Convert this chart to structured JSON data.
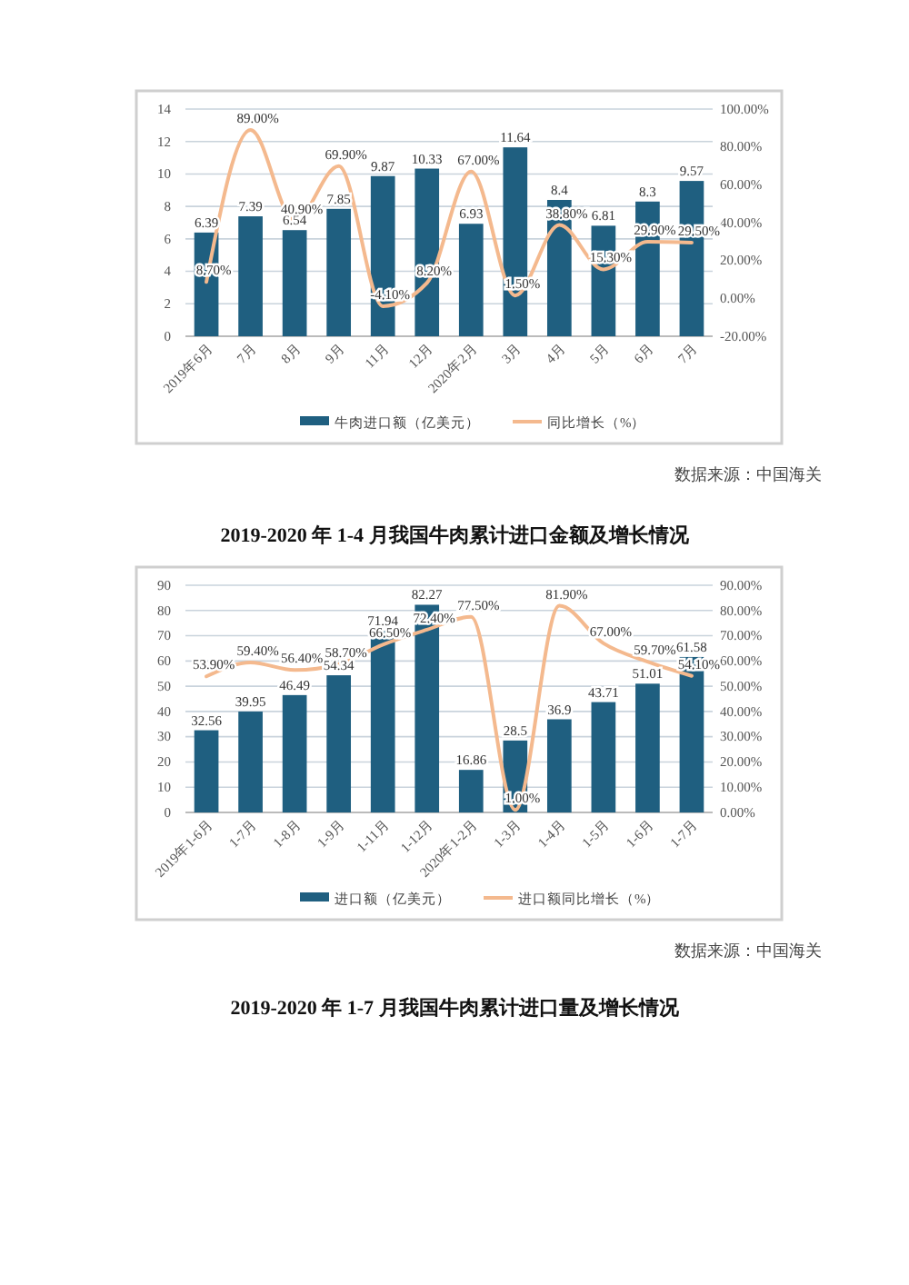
{
  "chart_data": [
    {
      "type": "bar",
      "categories": [
        "2019年6月",
        "7月",
        "8月",
        "9月",
        "11月",
        "12月",
        "2020年2月",
        "3月",
        "4月",
        "5月",
        "6月",
        "7月"
      ],
      "series": [
        {
          "name": "牛肉进口额（亿美元）",
          "color": "#1f5f80",
          "values": [
            6.39,
            7.39,
            6.54,
            7.85,
            9.87,
            10.33,
            6.93,
            11.64,
            8.4,
            6.81,
            8.3,
            9.57
          ],
          "value_labels": [
            "6.39",
            "7.39",
            "6.54",
            "7.85",
            "9.87",
            "10.33",
            "6.93",
            "11.64",
            "8.4",
            "6.81",
            "8.3",
            "9.57"
          ]
        },
        {
          "name": "同比增长（%）",
          "type": "line",
          "axis": "y2",
          "color": "#f4b98e",
          "values": [
            8.7,
            89.0,
            40.9,
            69.9,
            -4.1,
            8.2,
            67.0,
            1.5,
            38.8,
            15.3,
            29.9,
            29.5
          ],
          "value_labels": [
            "8.70%",
            "89.00%",
            "40.90%",
            "69.90%",
            "-4.10%",
            "8.20%",
            "67.00%",
            "1.50%",
            "38.80%",
            "15.30%",
            "29.90%",
            "29.50%"
          ]
        }
      ],
      "ylim": [
        0,
        14
      ],
      "yticks": [
        0,
        2,
        4,
        6,
        8,
        10,
        12,
        14
      ],
      "y2lim": [
        -20,
        100
      ],
      "y2ticks": [
        {
          "value": -20,
          "label": "-20.00%"
        },
        {
          "value": 0,
          "label": "0.00%"
        },
        {
          "value": 20,
          "label": "20.00%"
        },
        {
          "value": 40,
          "label": "40.00%"
        },
        {
          "value": 60,
          "label": "60.00%"
        },
        {
          "value": 80,
          "label": "80.00%"
        },
        {
          "value": 100,
          "label": "100.00%"
        }
      ],
      "grid": "y",
      "legend": "bottom",
      "marker": "none",
      "line_style": "solid",
      "annotations": [
        "数据来源：中国海关"
      ]
    },
    {
      "type": "bar",
      "title": "2019-2020 年 1-4 月我国牛肉累计进口金额及增长情况",
      "categories": [
        "2019年1-6月",
        "1-7月",
        "1-8月",
        "1-9月",
        "1-11月",
        "1-12月",
        "2020年1-2月",
        "1-3月",
        "1-4月",
        "1-5月",
        "1-6月",
        "1-7月"
      ],
      "series": [
        {
          "name": "进口额（亿美元）",
          "color": "#1f5f80",
          "values": [
            32.56,
            39.95,
            46.49,
            54.34,
            71.94,
            82.27,
            16.86,
            28.5,
            36.9,
            43.71,
            51.01,
            61.58
          ],
          "value_labels": [
            "32.56",
            "39.95",
            "46.49",
            "54.34",
            "71.94",
            "82.27",
            "16.86",
            "28.5",
            "36.9",
            "43.71",
            "51.01",
            "61.58"
          ]
        },
        {
          "name": "进口额同比增长（%）",
          "type": "line",
          "axis": "y2",
          "color": "#f4b98e",
          "values": [
            53.9,
            59.4,
            56.4,
            58.7,
            66.5,
            72.4,
            77.5,
            1.0,
            81.9,
            67.0,
            59.7,
            54.1
          ],
          "value_labels": [
            "53.90%",
            "59.40%",
            "56.40%",
            "58.70%",
            "66.50%",
            "72.40%",
            "77.50%",
            "1.00%",
            "81.90%",
            "67.00%",
            "59.70%",
            "54.10%"
          ]
        }
      ],
      "ylim": [
        0,
        90
      ],
      "yticks": [
        0,
        10,
        20,
        30,
        40,
        50,
        60,
        70,
        80,
        90
      ],
      "y2lim": [
        0,
        90
      ],
      "y2ticks": [
        {
          "value": 0,
          "label": "0.00%"
        },
        {
          "value": 10,
          "label": "10.00%"
        },
        {
          "value": 20,
          "label": "20.00%"
        },
        {
          "value": 30,
          "label": "30.00%"
        },
        {
          "value": 40,
          "label": "40.00%"
        },
        {
          "value": 50,
          "label": "50.00%"
        },
        {
          "value": 60,
          "label": "60.00%"
        },
        {
          "value": 70,
          "label": "70.00%"
        },
        {
          "value": 80,
          "label": "80.00%"
        },
        {
          "value": 90,
          "label": "90.00%"
        }
      ],
      "grid": "y",
      "legend": "bottom",
      "marker": "none",
      "line_style": "solid",
      "annotations": [
        "数据来源：中国海关",
        "2019-2020 年 1-7 月我国牛肉累计进口量及增长情况"
      ]
    }
  ]
}
